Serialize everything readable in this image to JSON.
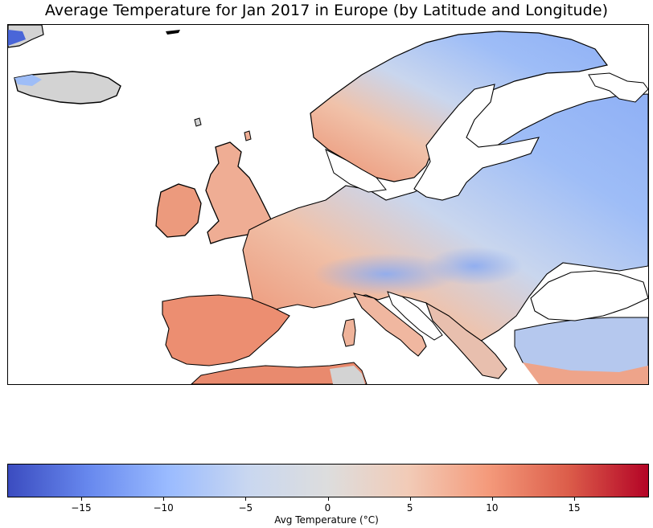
{
  "title": "Average Temperature for Jan 2017 in Europe (by Latitude and Longitude)",
  "map": {
    "region": "Europe",
    "colormap": "coolwarm",
    "land_no_data_color": "#d3d3d3",
    "coastline_color": "#000000"
  },
  "colorbar": {
    "label": "Avg Temperature (°C)",
    "min": -19.5,
    "max": 19.5,
    "tick_values": [
      -15,
      -10,
      -5,
      0,
      5,
      10,
      15
    ],
    "tick_labels": [
      "−15",
      "−10",
      "−5",
      "0",
      "5",
      "10",
      "15"
    ],
    "colors": [
      "#3b4cc0",
      "#6788ee",
      "#9abbff",
      "#c9d7f0",
      "#dddddd",
      "#f2cbb7",
      "#f49a7b",
      "#dc5d4a",
      "#b40426"
    ]
  }
}
